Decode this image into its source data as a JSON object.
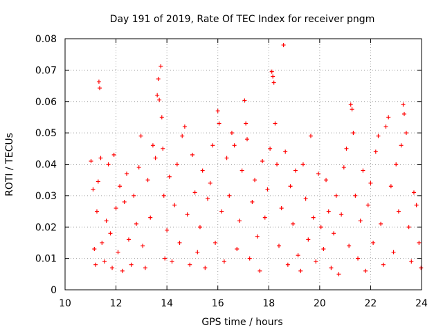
{
  "chart_data": {
    "type": "scatter",
    "title": "Day 191 of 2019, Rate Of TEC Index for receiver pngm",
    "xlabel": "GPS time / hours",
    "ylabel": "ROTI / TECUs",
    "xlim": [
      10,
      24
    ],
    "ylim": [
      0,
      0.08
    ],
    "x_ticks": [
      10,
      12,
      14,
      16,
      18,
      20,
      22,
      24
    ],
    "x_tick_labels": [
      "10",
      "12",
      "14",
      "16",
      "18",
      "20",
      "22",
      "24"
    ],
    "y_ticks": [
      0,
      0.01,
      0.02,
      0.03,
      0.04,
      0.05,
      0.06,
      0.07,
      0.08
    ],
    "y_tick_labels": [
      "0",
      "0.01",
      "0.02",
      "0.03",
      "0.04",
      "0.05",
      "0.06",
      "0.07",
      "0.08"
    ],
    "grid": true,
    "marker": "+",
    "marker_color": "#ff0000",
    "data_range_hours": [
      11.0,
      24.0
    ],
    "series": [
      {
        "name": "ROTI",
        "points": [
          [
            11.02,
            0.041
          ],
          [
            11.1,
            0.032
          ],
          [
            11.15,
            0.013
          ],
          [
            11.2,
            0.008
          ],
          [
            11.25,
            0.025
          ],
          [
            11.3,
            0.0345
          ],
          [
            11.33,
            0.0663
          ],
          [
            11.36,
            0.0643
          ],
          [
            11.4,
            0.042
          ],
          [
            11.45,
            0.015
          ],
          [
            11.55,
            0.009
          ],
          [
            11.62,
            0.022
          ],
          [
            11.7,
            0.04
          ],
          [
            11.78,
            0.018
          ],
          [
            11.85,
            0.007
          ],
          [
            11.92,
            0.043
          ],
          [
            12.0,
            0.026
          ],
          [
            12.08,
            0.012
          ],
          [
            12.15,
            0.033
          ],
          [
            12.25,
            0.006
          ],
          [
            12.33,
            0.028
          ],
          [
            12.42,
            0.037
          ],
          [
            12.5,
            0.016
          ],
          [
            12.6,
            0.008
          ],
          [
            12.7,
            0.03
          ],
          [
            12.8,
            0.021
          ],
          [
            12.9,
            0.039
          ],
          [
            12.98,
            0.049
          ],
          [
            13.05,
            0.014
          ],
          [
            13.15,
            0.007
          ],
          [
            13.25,
            0.035
          ],
          [
            13.35,
            0.023
          ],
          [
            13.45,
            0.046
          ],
          [
            13.55,
            0.042
          ],
          [
            13.62,
            0.062
          ],
          [
            13.66,
            0.0672
          ],
          [
            13.7,
            0.0605
          ],
          [
            13.76,
            0.0712
          ],
          [
            13.8,
            0.055
          ],
          [
            13.84,
            0.045
          ],
          [
            13.88,
            0.03
          ],
          [
            13.92,
            0.01
          ],
          [
            14.0,
            0.019
          ],
          [
            14.1,
            0.036
          ],
          [
            14.2,
            0.009
          ],
          [
            14.3,
            0.027
          ],
          [
            14.4,
            0.04
          ],
          [
            14.5,
            0.015
          ],
          [
            14.6,
            0.049
          ],
          [
            14.7,
            0.052
          ],
          [
            14.8,
            0.024
          ],
          [
            14.9,
            0.008
          ],
          [
            15.0,
            0.043
          ],
          [
            15.1,
            0.031
          ],
          [
            15.2,
            0.012
          ],
          [
            15.3,
            0.02
          ],
          [
            15.4,
            0.038
          ],
          [
            15.5,
            0.007
          ],
          [
            15.6,
            0.029
          ],
          [
            15.7,
            0.034
          ],
          [
            15.8,
            0.046
          ],
          [
            15.9,
            0.015
          ],
          [
            16.0,
            0.057
          ],
          [
            16.05,
            0.053
          ],
          [
            16.15,
            0.025
          ],
          [
            16.25,
            0.009
          ],
          [
            16.35,
            0.042
          ],
          [
            16.45,
            0.03
          ],
          [
            16.55,
            0.05
          ],
          [
            16.65,
            0.046
          ],
          [
            16.75,
            0.013
          ],
          [
            16.85,
            0.022
          ],
          [
            16.95,
            0.038
          ],
          [
            17.05,
            0.0603
          ],
          [
            17.1,
            0.053
          ],
          [
            17.15,
            0.048
          ],
          [
            17.25,
            0.01
          ],
          [
            17.35,
            0.028
          ],
          [
            17.45,
            0.035
          ],
          [
            17.55,
            0.017
          ],
          [
            17.65,
            0.006
          ],
          [
            17.75,
            0.041
          ],
          [
            17.85,
            0.023
          ],
          [
            17.95,
            0.032
          ],
          [
            18.05,
            0.045
          ],
          [
            18.12,
            0.0695
          ],
          [
            18.16,
            0.068
          ],
          [
            18.2,
            0.066
          ],
          [
            18.25,
            0.053
          ],
          [
            18.32,
            0.04
          ],
          [
            18.4,
            0.014
          ],
          [
            18.5,
            0.026
          ],
          [
            18.58,
            0.078
          ],
          [
            18.65,
            0.044
          ],
          [
            18.75,
            0.008
          ],
          [
            18.85,
            0.033
          ],
          [
            18.95,
            0.021
          ],
          [
            19.05,
            0.038
          ],
          [
            19.15,
            0.011
          ],
          [
            19.25,
            0.006
          ],
          [
            19.35,
            0.04
          ],
          [
            19.45,
            0.029
          ],
          [
            19.55,
            0.016
          ],
          [
            19.65,
            0.049
          ],
          [
            19.75,
            0.023
          ],
          [
            19.85,
            0.009
          ],
          [
            19.95,
            0.037
          ],
          [
            20.05,
            0.02
          ],
          [
            20.15,
            0.013
          ],
          [
            20.25,
            0.035
          ],
          [
            20.35,
            0.025
          ],
          [
            20.45,
            0.007
          ],
          [
            20.55,
            0.018
          ],
          [
            20.65,
            0.03
          ],
          [
            20.75,
            0.005
          ],
          [
            20.85,
            0.024
          ],
          [
            20.95,
            0.039
          ],
          [
            21.05,
            0.045
          ],
          [
            21.15,
            0.014
          ],
          [
            21.22,
            0.059
          ],
          [
            21.27,
            0.0575
          ],
          [
            21.32,
            0.05
          ],
          [
            21.4,
            0.03
          ],
          [
            21.5,
            0.01
          ],
          [
            21.6,
            0.022
          ],
          [
            21.7,
            0.038
          ],
          [
            21.8,
            0.006
          ],
          [
            21.9,
            0.027
          ],
          [
            22.0,
            0.034
          ],
          [
            22.1,
            0.015
          ],
          [
            22.2,
            0.044
          ],
          [
            22.3,
            0.049
          ],
          [
            22.4,
            0.021
          ],
          [
            22.5,
            0.008
          ],
          [
            22.6,
            0.052
          ],
          [
            22.7,
            0.055
          ],
          [
            22.8,
            0.033
          ],
          [
            22.9,
            0.012
          ],
          [
            23.0,
            0.04
          ],
          [
            23.1,
            0.025
          ],
          [
            23.2,
            0.046
          ],
          [
            23.28,
            0.059
          ],
          [
            23.32,
            0.056
          ],
          [
            23.4,
            0.05
          ],
          [
            23.5,
            0.02
          ],
          [
            23.6,
            0.009
          ],
          [
            23.7,
            0.031
          ],
          [
            23.8,
            0.027
          ],
          [
            23.9,
            0.015
          ],
          [
            23.98,
            0.007
          ]
        ]
      }
    ]
  }
}
